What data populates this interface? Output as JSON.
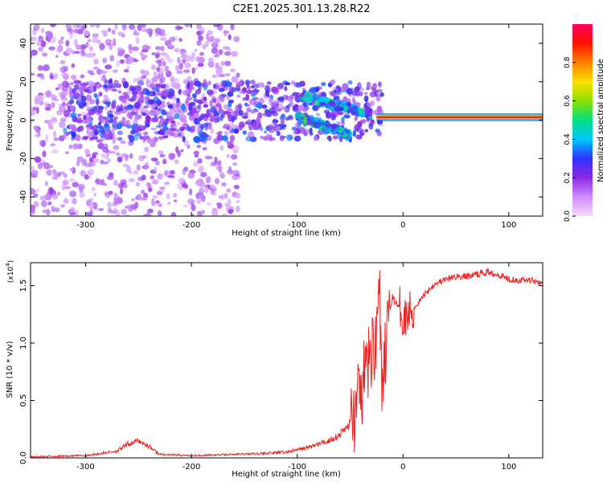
{
  "title": "C2E1.2025.301.13.28.R22",
  "chart_data": [
    {
      "type": "heatmap",
      "title": "C2E1.2025.301.13.28.R22",
      "xlabel": "Height of straight line (km)",
      "ylabel": "Frequency (Hz)",
      "xlim": [
        -352,
        132
      ],
      "ylim": [
        -50,
        50
      ],
      "x_ticks": [
        -300,
        -200,
        -100,
        0,
        100
      ],
      "x_tick_labels": [
        "-300",
        "-200",
        "-100",
        "0",
        "100"
      ],
      "y_ticks": [
        -40,
        -20,
        0,
        20,
        40
      ],
      "y_tick_labels": [
        "-40",
        "-20",
        "0",
        "20",
        "40"
      ],
      "colorbar": {
        "label": "Normalized spectral amplitude",
        "range": [
          0,
          1
        ],
        "ticks": [
          0.0,
          0.2,
          0.4,
          0.6,
          0.8
        ],
        "tick_labels": [
          "0.0",
          "0.2",
          "0.4",
          "0.6",
          "0.8"
        ],
        "colors": [
          "#f4d8ff",
          "#c98cff",
          "#8a2be2",
          "#3030ff",
          "#00c8ff",
          "#00e080",
          "#8ce000",
          "#ffe000",
          "#ff8000",
          "#ff1000",
          "#ff0060"
        ]
      },
      "features": [
        {
          "name": "diffuse scatter",
          "x_range": [
            -352,
            -155
          ],
          "y_range": [
            -50,
            50
          ],
          "amplitude": 0.15
        },
        {
          "name": "dense band",
          "x_range": [
            -320,
            -20
          ],
          "y_range": [
            -10,
            20
          ],
          "amplitude": 0.3
        },
        {
          "name": "upper arc",
          "from": [
            -100,
            13
          ],
          "to": [
            -30,
            3
          ],
          "amplitude": 0.45
        },
        {
          "name": "lower arc",
          "from": [
            -100,
            2
          ],
          "to": [
            -50,
            -8
          ],
          "amplitude": 0.45
        },
        {
          "name": "stable carrier",
          "x_range": [
            -25,
            132
          ],
          "y": 1.5,
          "amplitude": 0.95
        }
      ]
    },
    {
      "type": "line",
      "xlabel": "Height of straight line (km)",
      "ylabel": "SNR (10 * v/v)",
      "scale_label": "(x10",
      "scale_exponent": "4",
      "xlim": [
        -352,
        132
      ],
      "ylim": [
        0,
        1.7
      ],
      "x_ticks": [
        -300,
        -200,
        -100,
        0,
        100
      ],
      "x_tick_labels": [
        "-300",
        "-200",
        "-100",
        "0",
        "100"
      ],
      "y_ticks": [
        0.0,
        0.5,
        1.0,
        1.5
      ],
      "y_tick_labels": [
        "0.0",
        "0.5",
        "1.0",
        "1.5"
      ],
      "series": [
        {
          "name": "SNR",
          "color": "#ee2222",
          "x": [
            -352,
            -300,
            -270,
            -260,
            -250,
            -240,
            -230,
            -200,
            -160,
            -130,
            -110,
            -100,
            -90,
            -80,
            -70,
            -60,
            -50,
            -45,
            -40,
            -35,
            -30,
            -25,
            -22,
            -20,
            -15,
            -10,
            0,
            10,
            20,
            30,
            40,
            50,
            60,
            70,
            80,
            90,
            100,
            110,
            120,
            132
          ],
          "y": [
            0.01,
            0.02,
            0.06,
            0.12,
            0.15,
            0.1,
            0.03,
            0.02,
            0.03,
            0.04,
            0.05,
            0.07,
            0.09,
            0.12,
            0.15,
            0.2,
            0.3,
            0.4,
            0.55,
            0.75,
            0.9,
            1.1,
            1.55,
            0.35,
            1.2,
            1.4,
            1.25,
            1.3,
            1.42,
            1.52,
            1.55,
            1.58,
            1.58,
            1.6,
            1.62,
            1.6,
            1.56,
            1.55,
            1.55,
            1.53
          ]
        }
      ]
    }
  ]
}
